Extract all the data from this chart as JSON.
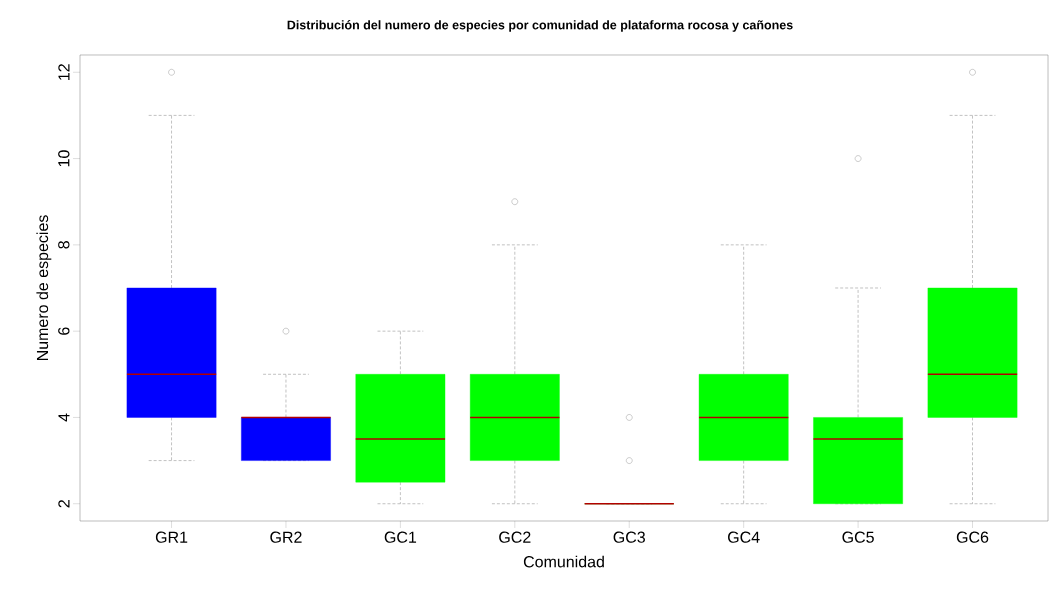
{
  "chart_data": {
    "type": "box",
    "title": "Distribución del numero de especies por comunidad de plataforma rocosa y cañones",
    "xlabel": "Comunidad",
    "ylabel": "Numero de especies",
    "categories": [
      "GR1",
      "GR2",
      "GC1",
      "GC2",
      "GC3",
      "GC4",
      "GC5",
      "GC6"
    ],
    "colors": [
      "#0000ff",
      "#0000ff",
      "#00ff00",
      "#00ff00",
      "#00ff00",
      "#00ff00",
      "#00ff00",
      "#00ff00"
    ],
    "boxes": [
      {
        "low": 3,
        "q1": 4,
        "median": 5,
        "q3": 7,
        "high": 11,
        "outliers": [
          12
        ]
      },
      {
        "low": 3,
        "q1": 3,
        "median": 4,
        "q3": 4,
        "high": 5,
        "outliers": [
          6
        ]
      },
      {
        "low": 2,
        "q1": 2.5,
        "median": 3.5,
        "q3": 5,
        "high": 6
      },
      {
        "low": 2,
        "q1": 3,
        "median": 4,
        "q3": 5,
        "high": 8,
        "outliers": [
          9
        ]
      },
      {
        "low": 2,
        "q1": 2,
        "median": 2,
        "q3": 2,
        "high": 2,
        "outliers": [
          3,
          4
        ]
      },
      {
        "low": 2,
        "q1": 3,
        "median": 4,
        "q3": 5,
        "high": 8
      },
      {
        "low": 2,
        "q1": 2,
        "median": 3.5,
        "q3": 4,
        "high": 7,
        "outliers": [
          10
        ]
      },
      {
        "low": 2,
        "q1": 4,
        "median": 5,
        "q3": 7,
        "high": 11,
        "outliers": [
          12
        ]
      }
    ],
    "ylim": [
      1.6,
      12.4
    ],
    "yticks": [
      2,
      4,
      6,
      8,
      10,
      12
    ]
  }
}
